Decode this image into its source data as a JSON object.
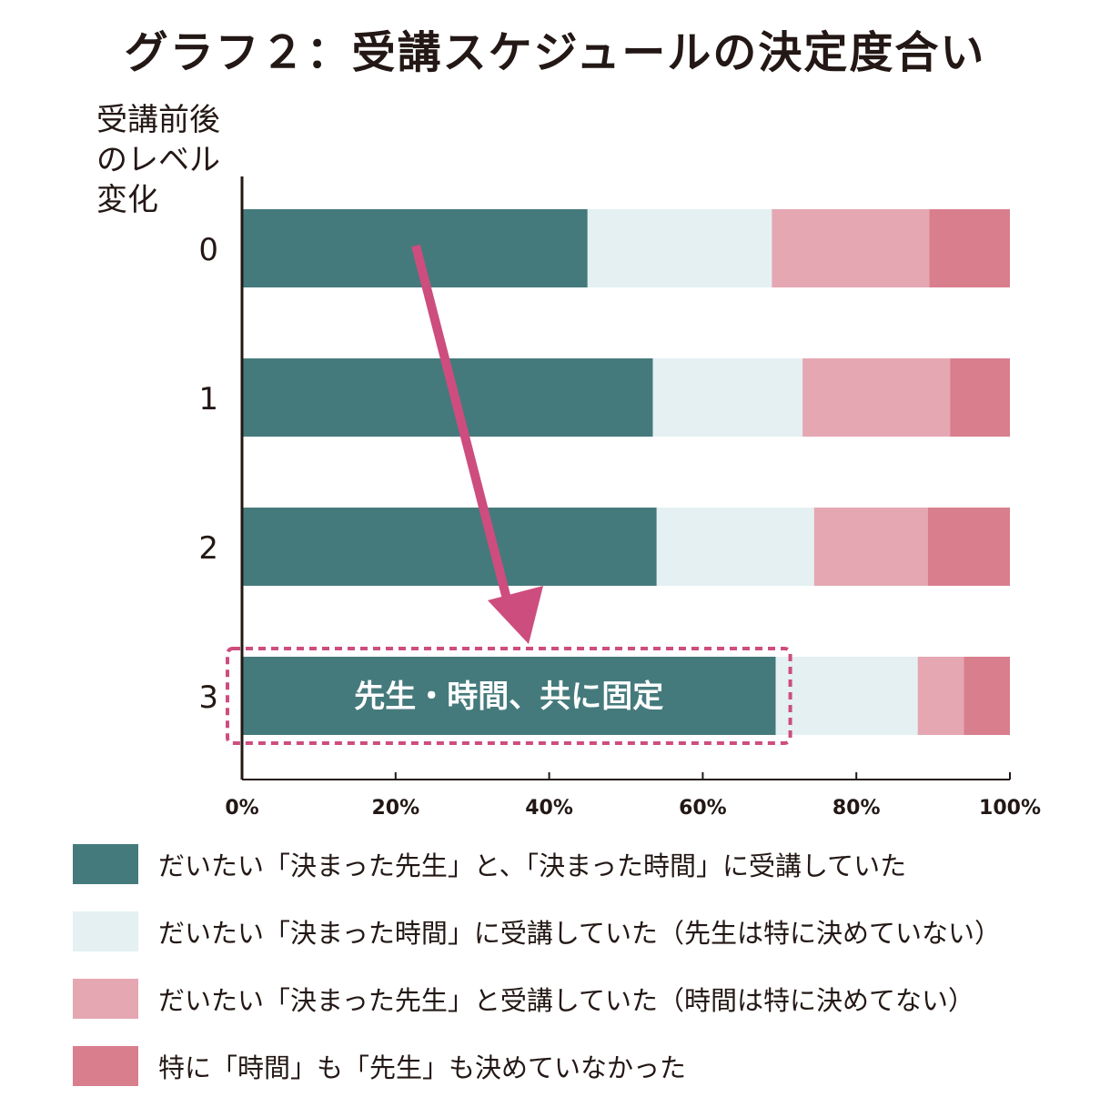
{
  "chart_data": {
    "type": "bar",
    "orientation": "horizontal",
    "stacked": true,
    "title": "グラフ２：受講スケジュールの決定度合い",
    "ylabel": "受講前後\nのレベル\n変化",
    "xlabel": "",
    "categories": [
      "0",
      "1",
      "2",
      "3"
    ],
    "xlim": [
      0,
      100
    ],
    "x_ticks": [
      "0%",
      "20%",
      "40%",
      "60%",
      "80%",
      "100%"
    ],
    "series": [
      {
        "name": "だいたい「決まった先生」と、「決まった時間」に受講していた",
        "color": "#457a7c",
        "values": [
          45,
          53.5,
          54,
          69.5
        ]
      },
      {
        "name": "だいたい「決まった時間」に受講していた（先生は特に決めていない）",
        "color": "#e4f0f1",
        "values": [
          24,
          19.5,
          20.5,
          18.5
        ]
      },
      {
        "name": "だいたい「決まった先生」と受講していた（時間は特に決めてない）",
        "color": "#e5a7b2",
        "values": [
          20.5,
          19.2,
          14.8,
          6
        ]
      },
      {
        "name": "特に「時間」も「先生」も決めていなかった",
        "color": "#d97e8d",
        "values": [
          10.5,
          7.8,
          10.7,
          6
        ]
      }
    ],
    "legend_position": "bottom",
    "grid": false,
    "annotation": {
      "text": "先生・時間、共に固定",
      "category": "3",
      "series_index": 0,
      "arrow_color": "#cd4d7e",
      "box_color": "#cd4d7e"
    }
  }
}
